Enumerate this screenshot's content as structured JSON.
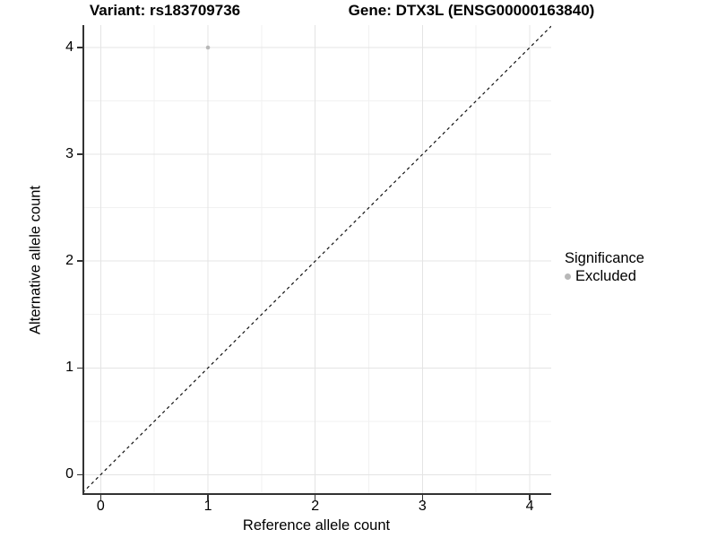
{
  "titles": {
    "variant": "Variant: rs183709736",
    "gene": "Gene: DTX3L (ENSG00000163840)"
  },
  "axes": {
    "x": {
      "label": "Reference allele count"
    },
    "y": {
      "label": "Alternative allele count"
    }
  },
  "legend": {
    "title": "Significance",
    "items": [
      {
        "label": "Excluded",
        "color": "#b8b8b8"
      }
    ]
  },
  "colors": {
    "background": "#ffffff",
    "grid_major": "#e4e4e4",
    "grid_minor": "#f1f1f1",
    "axis_line": "#333333",
    "tick_text": "#000000",
    "point_excluded": "#b8b8b8",
    "reference_line": "#111111"
  },
  "chart_data": {
    "type": "scatter",
    "title": "Variant: rs183709736   Gene: DTX3L (ENSG00000163840)",
    "xlabel": "Reference allele count",
    "ylabel": "Alternative allele count",
    "xlim": [
      -0.17,
      4.2
    ],
    "ylim": [
      -0.19,
      4.21
    ],
    "x_ticks": [
      0,
      1,
      2,
      3,
      4
    ],
    "y_ticks": [
      0,
      1,
      2,
      3,
      4
    ],
    "grid": true,
    "minor_grid": true,
    "legend_position": "right",
    "series": [
      {
        "name": "Excluded",
        "color": "#b8b8b8",
        "point_radius": 2.3,
        "points": [
          {
            "x": 1,
            "y": 4
          }
        ]
      }
    ],
    "reference_line": {
      "type": "identity",
      "slope": 1,
      "intercept": 0,
      "style": "dashed",
      "color": "#111111"
    }
  }
}
